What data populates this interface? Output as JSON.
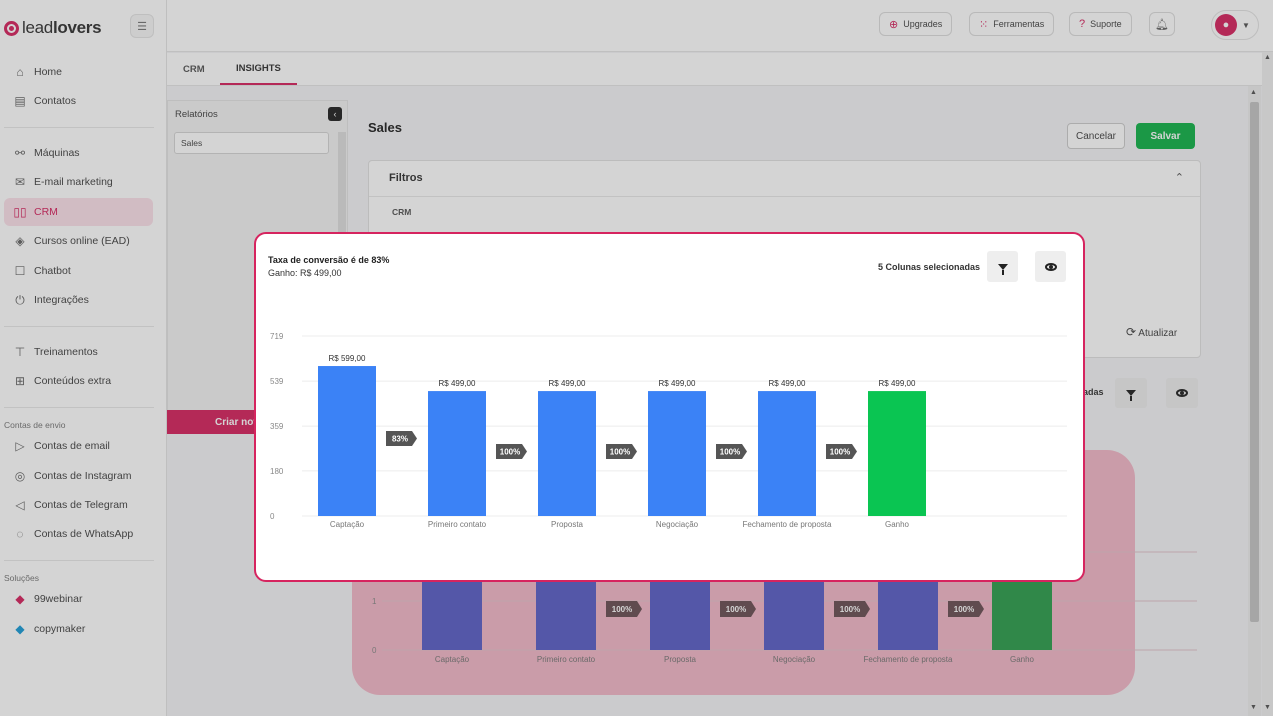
{
  "app": {
    "logo_prefix": "lead",
    "logo_bold": "lovers",
    "collapse_icon": "sidebar-collapse-icon"
  },
  "sidebar": {
    "groups": [
      {
        "items": [
          {
            "label": "Home",
            "icon": "home-icon"
          },
          {
            "label": "Contatos",
            "icon": "contacts-icon"
          }
        ]
      },
      {
        "items": [
          {
            "label": "Máquinas",
            "icon": "machines-icon"
          },
          {
            "label": "E-mail marketing",
            "icon": "mail-icon"
          },
          {
            "label": "CRM",
            "icon": "crm-icon",
            "active": true
          },
          {
            "label": "Cursos online (EAD)",
            "icon": "graduation-icon"
          },
          {
            "label": "Chatbot",
            "icon": "chatbot-icon"
          },
          {
            "label": "Integrações",
            "icon": "plug-icon"
          }
        ]
      },
      {
        "items": [
          {
            "label": "Treinamentos",
            "icon": "training-icon"
          },
          {
            "label": "Conteúdos extra",
            "icon": "gift-icon"
          }
        ]
      }
    ],
    "section_envio": "Contas de envio",
    "envio_items": [
      {
        "label": "Contas de email",
        "icon": "send-icon"
      },
      {
        "label": "Contas de Instagram",
        "icon": "instagram-icon"
      },
      {
        "label": "Contas de Telegram",
        "icon": "telegram-icon"
      },
      {
        "label": "Contas de WhatsApp",
        "icon": "whatsapp-icon"
      }
    ],
    "section_solucoes": "Soluções",
    "solucoes_items": [
      {
        "label": "99webinar",
        "icon": "webinar-icon"
      },
      {
        "label": "copymaker",
        "icon": "copymaker-icon"
      }
    ]
  },
  "topbar": {
    "upgrades": "Upgrades",
    "ferramentas": "Ferramentas",
    "suporte": "Suporte"
  },
  "tabs": [
    "CRM",
    "INSIGHTS"
  ],
  "reports": {
    "title": "Relatórios",
    "item": "Sales",
    "create": "Criar nov"
  },
  "main": {
    "title": "Sales",
    "cancel": "Cancelar",
    "save": "Salvar",
    "filters_title": "Filtros",
    "filters_crm": "CRM",
    "refresh": "Atualizar",
    "columns_partial": "adas"
  },
  "modal": {
    "title": "Taxa de conversão é de 83%",
    "subtitle": "Ganho: R$ 499,00",
    "columns_selected": "5 Colunas selecionadas"
  },
  "colors": {
    "accent": "#d6245f",
    "bar_blue": "#3b82f6",
    "bar_green": "#0ac552",
    "bg_bar_blue": "#5b5fc7",
    "bg_bar_green": "#2e9e4e",
    "arrow": "#555555"
  },
  "chart_data": [
    {
      "type": "bar",
      "categories": [
        "Captação",
        "Primeiro contato",
        "Proposta",
        "Negociação",
        "Fechamento de proposta",
        "Ganho"
      ],
      "values": [
        599,
        499,
        499,
        499,
        499,
        499
      ],
      "value_labels": [
        "R$ 599,00",
        "R$ 499,00",
        "R$ 499,00",
        "R$ 499,00",
        "R$ 499,00",
        "R$ 499,00"
      ],
      "conversions": [
        "83%",
        "100%",
        "100%",
        "100%",
        "100%"
      ],
      "yticks": [
        0,
        180,
        359,
        539,
        719
      ],
      "ylim": [
        0,
        719
      ],
      "grid": true
    },
    {
      "type": "bar",
      "categories": [
        "Captação",
        "Primeiro contato",
        "Proposta",
        "Negociação",
        "Fechamento de proposta",
        "Ganho"
      ],
      "visible_conversions": [
        "100%",
        "100%",
        "100%",
        "100%"
      ],
      "yticks": [
        0,
        1
      ]
    }
  ]
}
